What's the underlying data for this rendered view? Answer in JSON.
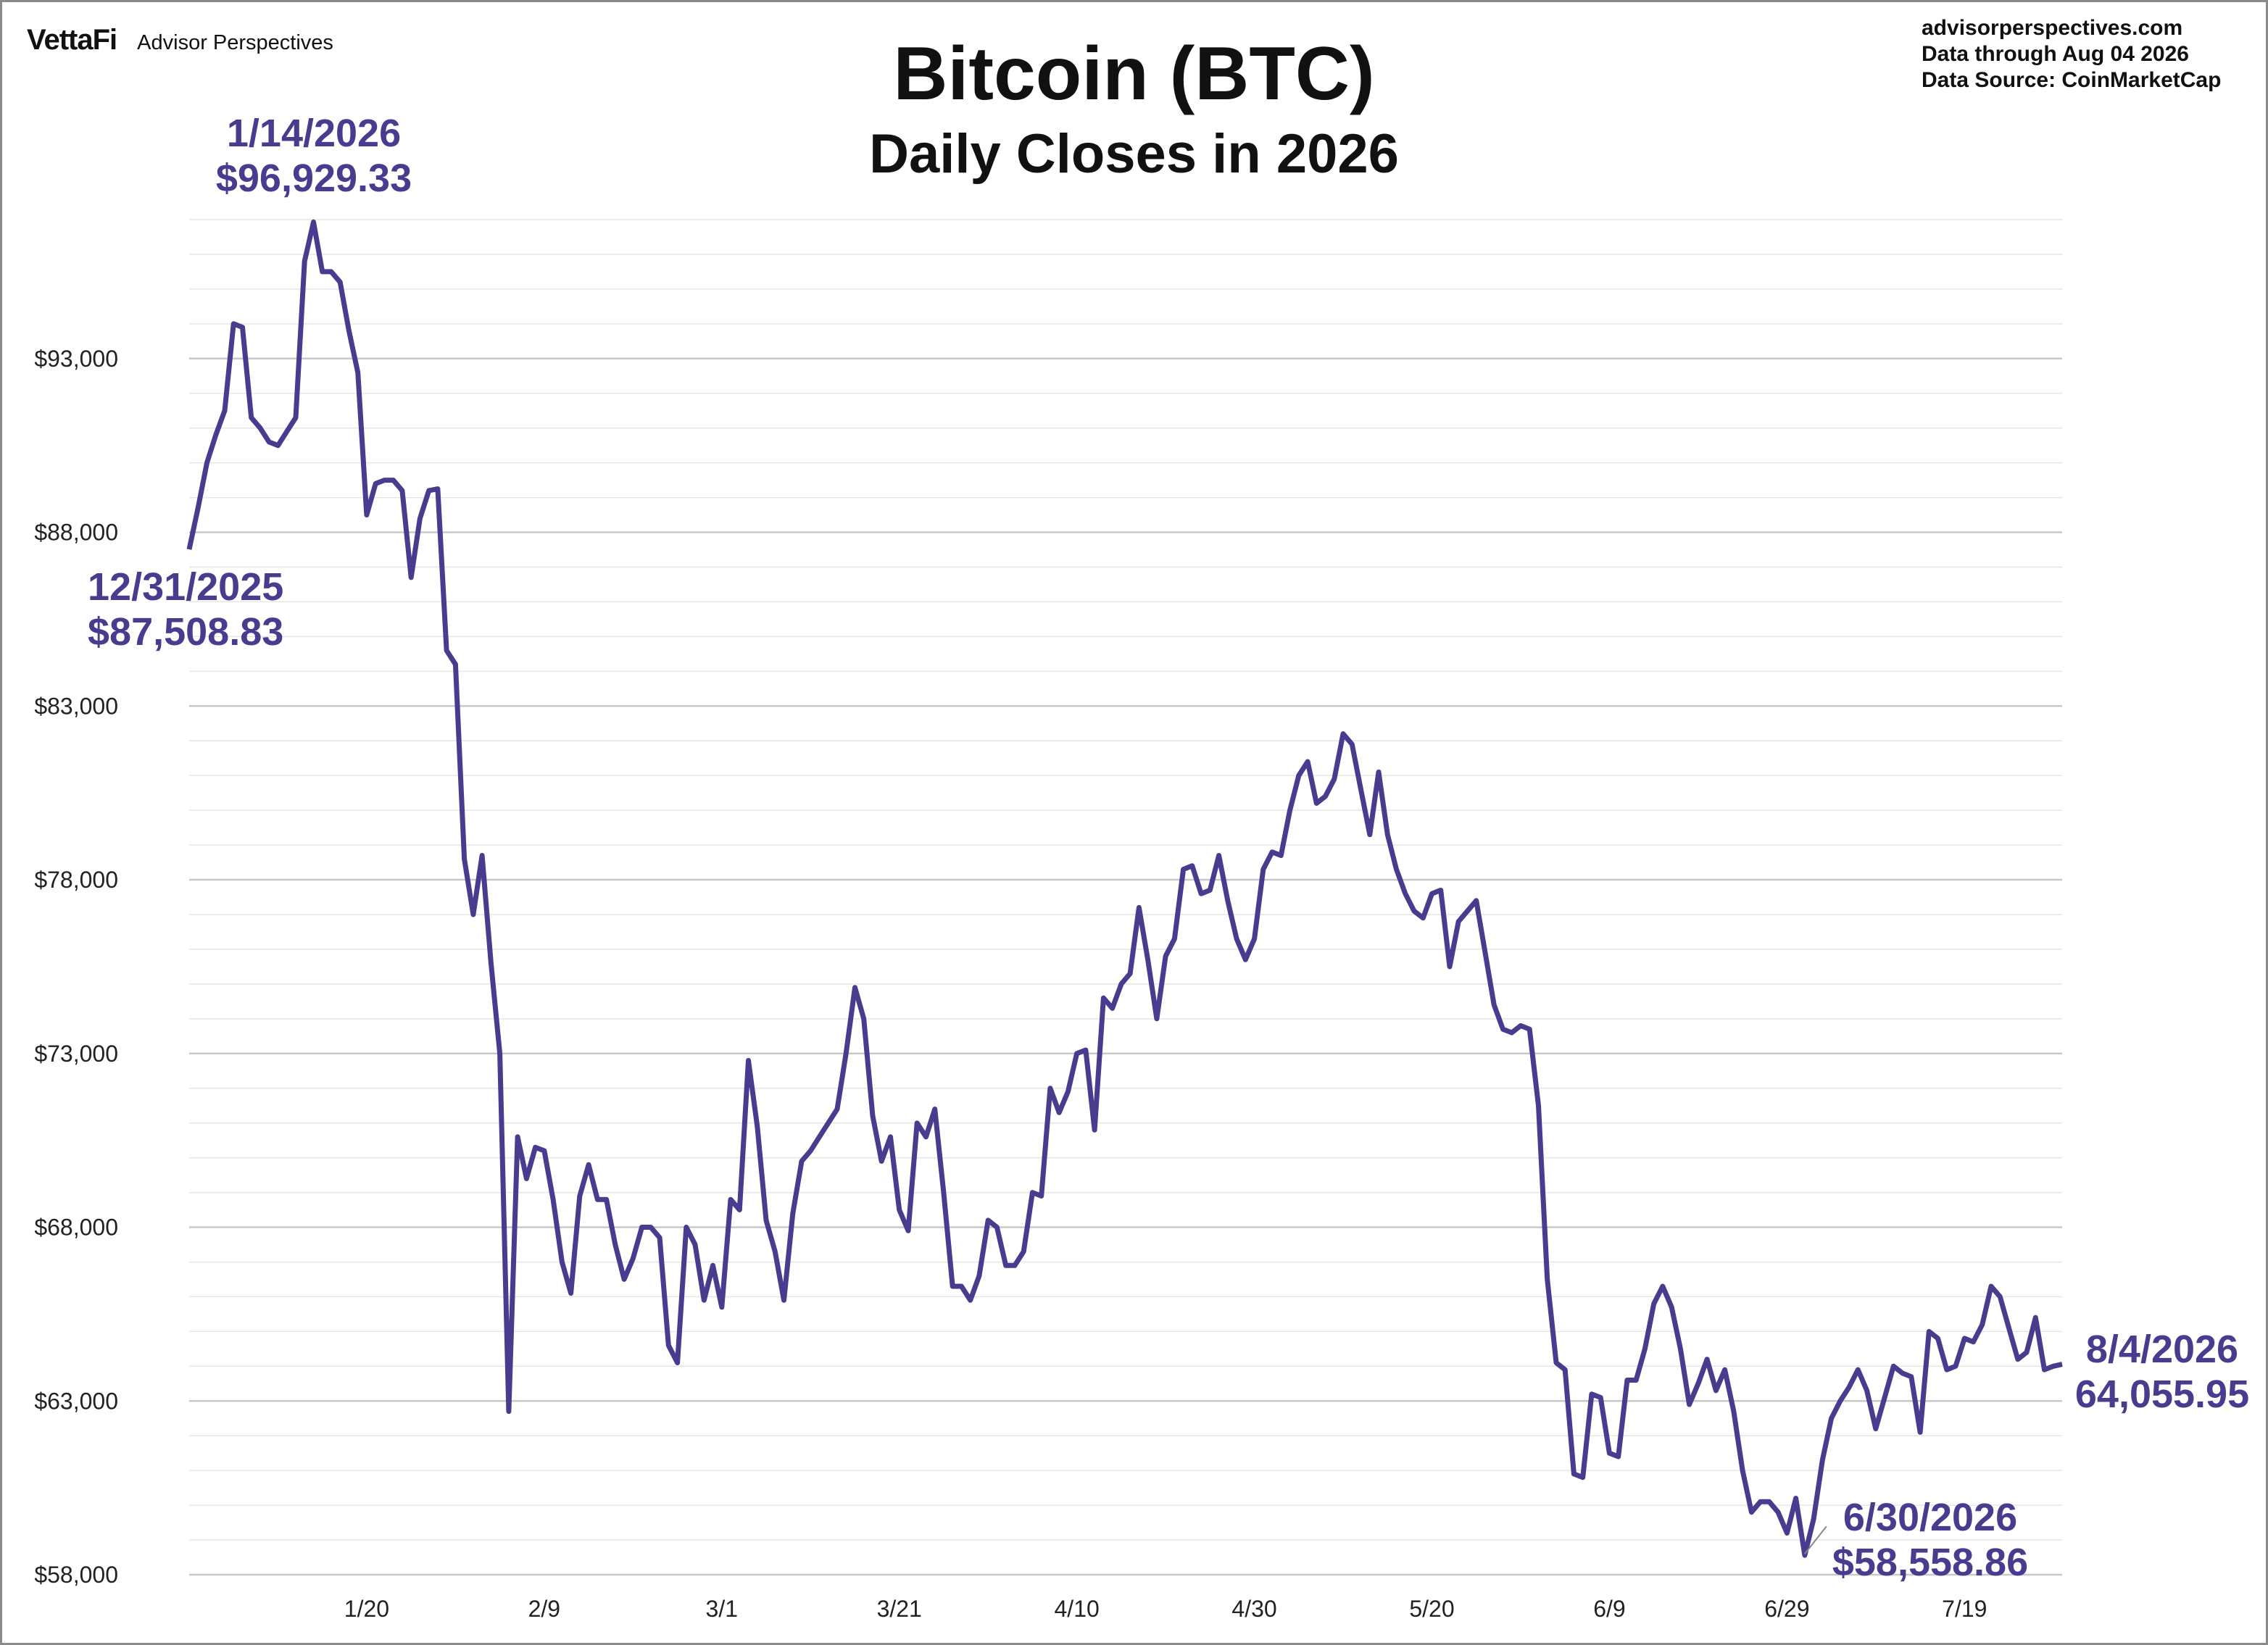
{
  "header": {
    "brand_logo": "VettaFi",
    "brand_name": "Advisor Perspectives",
    "source_lines": [
      "advisorperspectives.com",
      "Data through Aug 04 2026",
      "Data Source: CoinMarketCap"
    ]
  },
  "chart_data": {
    "type": "line",
    "title": "Bitcoin (BTC)",
    "subtitle": "Daily Closes in 2026",
    "xlabel": "",
    "ylabel": "",
    "ylim": [
      58000,
      97000
    ],
    "yticks": [
      58000,
      63000,
      68000,
      73000,
      78000,
      83000,
      88000,
      93000
    ],
    "ytick_labels": [
      "$58,000",
      "$63,000",
      "$68,000",
      "$73,000",
      "$78,000",
      "$83,000",
      "$88,000",
      "$93,000"
    ],
    "xtick_labels": [
      "1/20",
      "2/9",
      "3/1",
      "3/21",
      "4/10",
      "4/30",
      "5/20",
      "6/9",
      "6/29",
      "7/19"
    ],
    "xtick_days": [
      20,
      40,
      60,
      80,
      100,
      120,
      140,
      160,
      180,
      200
    ],
    "x_start": "2025-12-31",
    "x_end": "2026-08-04",
    "grid": true,
    "line_color": "#4a3b8f",
    "series": [
      {
        "name": "",
        "values": [
          87509,
          88700,
          90000,
          90800,
          91500,
          94000,
          93900,
          91300,
          91000,
          90600,
          90500,
          90900,
          91300,
          95800,
          96929,
          95500,
          95500,
          95200,
          93800,
          92600,
          88500,
          89400,
          89500,
          89500,
          89200,
          86700,
          88400,
          89200,
          89250,
          84600,
          84200,
          78600,
          77000,
          78700,
          75600,
          73000,
          62700,
          70600,
          69400,
          70300,
          70200,
          68800,
          67000,
          66100,
          68900,
          69800,
          68800,
          68800,
          67500,
          66500,
          67100,
          68000,
          68000,
          67700,
          64600,
          64100,
          68000,
          67500,
          65900,
          66900,
          65700,
          68800,
          68500,
          72800,
          70900,
          68200,
          67300,
          65900,
          68400,
          69900,
          70200,
          70600,
          71000,
          71400,
          73000,
          74900,
          74000,
          71200,
          69900,
          70600,
          68500,
          67900,
          71000,
          70600,
          71400,
          69000,
          66300,
          66300,
          65900,
          66600,
          68200,
          68000,
          66900,
          66900,
          67300,
          69000,
          68900,
          72000,
          71300,
          71900,
          73000,
          73100,
          70800,
          74600,
          74300,
          75000,
          75300,
          77200,
          75700,
          74000,
          75800,
          76300,
          78300,
          78400,
          77600,
          77700,
          78700,
          77400,
          76300,
          75700,
          76300,
          78300,
          78800,
          78700,
          80000,
          81000,
          81400,
          80200,
          80400,
          80900,
          82200,
          81900,
          80600,
          79300,
          81100,
          79300,
          78300,
          77600,
          77100,
          76900,
          77600,
          77700,
          75500,
          76800,
          77100,
          77400,
          75900,
          74400,
          73700,
          73600,
          73800,
          73700,
          71500,
          66500,
          64100,
          63900,
          60900,
          60800,
          63200,
          63100,
          61500,
          61400,
          63600,
          63600,
          64500,
          65800,
          66300,
          65700,
          64500,
          62900,
          63500,
          64200,
          63300,
          63900,
          62700,
          61000,
          59800,
          60100,
          60100,
          59800,
          59200,
          60200,
          58559,
          59600,
          61300,
          62500,
          63000,
          63400,
          63900,
          63300,
          62200,
          63100,
          64000,
          63800,
          63700,
          62100,
          65000,
          64800,
          63900,
          64000,
          64800,
          64700,
          65200,
          66300,
          66000,
          65100,
          64200,
          64400,
          65400,
          63900,
          64000,
          64056
        ]
      }
    ],
    "annotations": [
      {
        "date": "12/31/2025",
        "value": "$87,508.83"
      },
      {
        "date": "1/14/2026",
        "value": "$96,929.33"
      },
      {
        "date": "6/30/2026",
        "value": "$58,558.86"
      },
      {
        "date": "8/4/2026",
        "value": "64,055.95"
      }
    ]
  }
}
